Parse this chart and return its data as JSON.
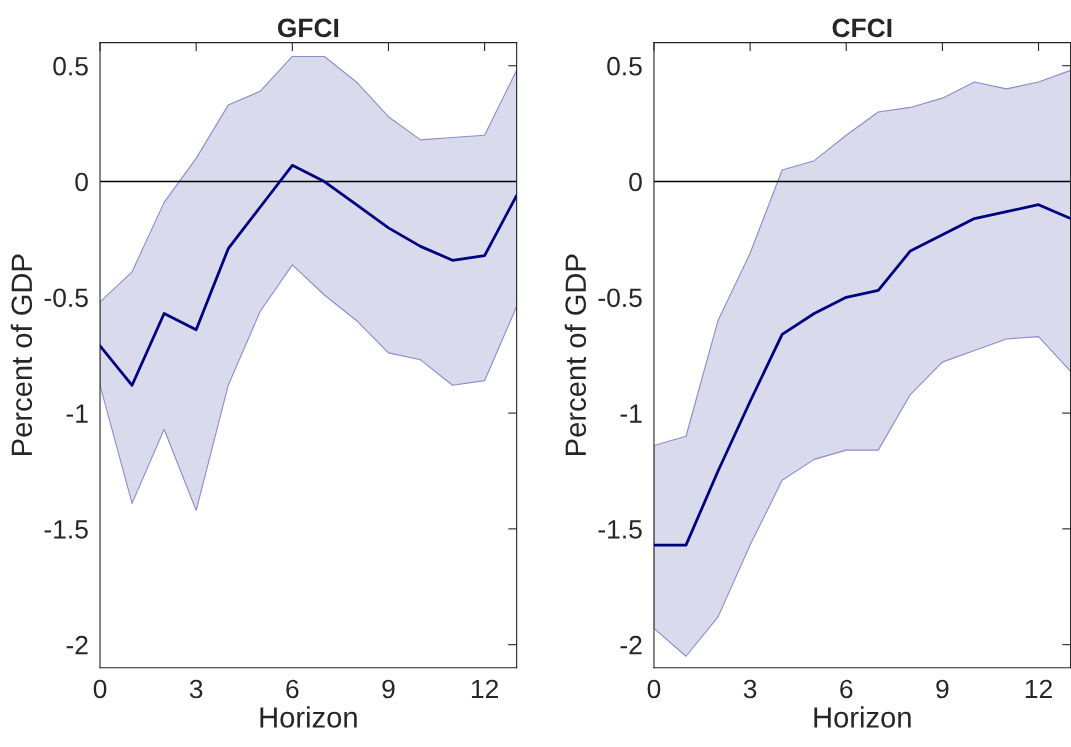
{
  "chart_data": [
    {
      "type": "line",
      "title": "GFCI",
      "xlabel": "Horizon",
      "ylabel": "Percent of GDP",
      "x": [
        0,
        1,
        2,
        3,
        4,
        5,
        6,
        7,
        8,
        9,
        10,
        11,
        12,
        13
      ],
      "series": [
        {
          "color": "#000080",
          "values": [
            -0.71,
            -0.88,
            -0.57,
            -0.64,
            -0.29,
            -0.11,
            0.07,
            0.0,
            -0.1,
            -0.2,
            -0.28,
            -0.34,
            -0.32,
            -0.06
          ],
          "lower": [
            -0.88,
            -1.39,
            -1.07,
            -1.42,
            -0.88,
            -0.56,
            -0.36,
            -0.49,
            -0.6,
            -0.74,
            -0.77,
            -0.88,
            -0.86,
            -0.54
          ],
          "upper": [
            -0.52,
            -0.39,
            -0.09,
            0.1,
            0.33,
            0.39,
            0.54,
            0.54,
            0.43,
            0.28,
            0.18,
            0.19,
            0.2,
            0.48
          ]
        }
      ],
      "xlim": [
        0,
        13
      ],
      "xticks": [
        0,
        3,
        6,
        9,
        12
      ],
      "ylim": [
        -2.1,
        0.6
      ],
      "yticks": [
        -2,
        -1.5,
        -1,
        -0.5,
        0,
        0.5
      ],
      "ref_lines": [
        {
          "axis": "y",
          "value": 0,
          "color": "#000000"
        }
      ],
      "grid": false,
      "legend": false,
      "marker": "none",
      "line_style": "solid"
    },
    {
      "type": "line",
      "title": "CFCI",
      "xlabel": "Horizon",
      "ylabel": "Percent of GDP",
      "x": [
        0,
        1,
        2,
        3,
        4,
        5,
        6,
        7,
        8,
        9,
        10,
        11,
        12,
        13
      ],
      "series": [
        {
          "color": "#000080",
          "values": [
            -1.57,
            -1.57,
            -1.25,
            -0.95,
            -0.66,
            -0.57,
            -0.5,
            -0.47,
            -0.3,
            -0.23,
            -0.16,
            -0.13,
            -0.1,
            -0.16
          ],
          "lower": [
            -1.93,
            -2.05,
            -1.88,
            -1.57,
            -1.29,
            -1.2,
            -1.16,
            -1.16,
            -0.92,
            -0.78,
            -0.73,
            -0.68,
            -0.67,
            -0.82
          ],
          "upper": [
            -1.14,
            -1.1,
            -0.6,
            -0.31,
            0.05,
            0.09,
            0.2,
            0.3,
            0.32,
            0.36,
            0.43,
            0.4,
            0.43,
            0.48
          ]
        }
      ],
      "xlim": [
        0,
        13
      ],
      "xticks": [
        0,
        3,
        6,
        9,
        12
      ],
      "ylim": [
        -2.1,
        0.6
      ],
      "yticks": [
        -2,
        -1.5,
        -1,
        -0.5,
        0,
        0.5
      ],
      "ref_lines": [
        {
          "axis": "y",
          "value": 0,
          "color": "#000000"
        }
      ],
      "grid": false,
      "legend": false,
      "marker": "none",
      "line_style": "solid"
    }
  ]
}
